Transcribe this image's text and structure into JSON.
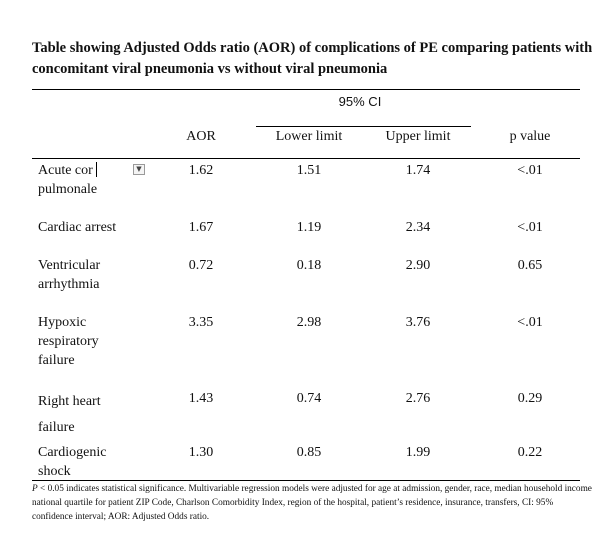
{
  "title": "Table showing Adjusted Odds ratio (AOR) of complications of PE comparing patients with concomitant viral pneumonia vs without viral pneumonia",
  "table": {
    "ci_group_label": "95% CI",
    "columns": {
      "aor": "AOR",
      "lower": "Lower limit",
      "upper": "Upper limit",
      "p": "p value"
    },
    "rows": [
      {
        "label": "Acute cor pulmonale",
        "aor": "1.62",
        "lower": "1.51",
        "upper": "1.74",
        "p": "<.01"
      },
      {
        "label": "Cardiac arrest",
        "aor": "1.67",
        "lower": "1.19",
        "upper": "2.34",
        "p": "<.01"
      },
      {
        "label": "Ventricular arrhythmia",
        "aor": "0.72",
        "lower": "0.18",
        "upper": "2.90",
        "p": "0.65"
      },
      {
        "label": "Hypoxic respiratory failure",
        "aor": "3.35",
        "lower": "2.98",
        "upper": "3.76",
        "p": "<.01"
      },
      {
        "label": "Right heart failure",
        "aor": "1.43",
        "lower": "0.74",
        "upper": "2.76",
        "p": "0.29"
      },
      {
        "label": "Cardiogenic shock",
        "aor": "1.30",
        "lower": "0.85",
        "upper": "1.99",
        "p": "0.22"
      }
    ]
  },
  "footnote": {
    "p_symbol": "P",
    "text": " < 0.05 indicates statistical significance. Multivariable regression models were adjusted for age at admission, gender, race, median household income national quartile for patient ZIP Code, Charlson Comorbidity Index, region of the hospital, patient’s residence, insurance, transfers, CI: 95% confidence interval; AOR: Adjusted Odds ratio."
  },
  "dropdown_icon": "triangle-down"
}
